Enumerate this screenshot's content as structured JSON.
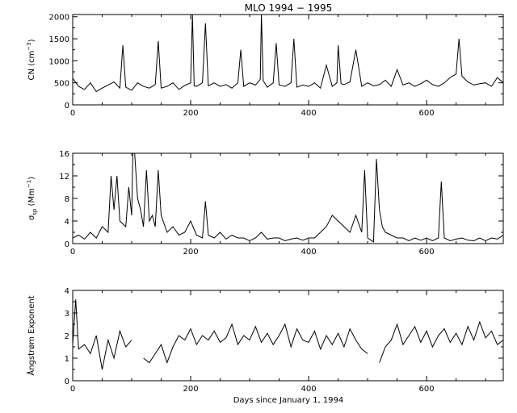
{
  "figure": {
    "title": "MLO 1994 − 1995",
    "xlabel": "Days since January 1, 1994"
  },
  "chart_data": [
    {
      "type": "line",
      "title": "MLO 1994 − 1995",
      "ylabel": {
        "main": "CN (cm",
        "sup": "−3",
        "close": ")"
      },
      "xlabel": "",
      "xlim": [
        0,
        730
      ],
      "ylim": [
        0,
        2050
      ],
      "xticks": [
        0,
        200,
        400,
        600
      ],
      "yticks": [
        0,
        500,
        1000,
        1500,
        2000
      ],
      "grid": false,
      "series": [
        {
          "x": [
            0,
            10,
            20,
            30,
            40,
            50,
            60,
            70,
            80,
            85,
            90,
            100,
            110,
            120,
            130,
            140,
            145,
            150,
            160,
            170,
            180,
            190,
            200,
            203,
            206,
            210,
            220,
            225,
            230,
            240,
            250,
            260,
            270,
            280,
            285,
            290,
            300,
            310,
            318,
            320,
            323,
            330,
            340,
            345,
            350,
            360,
            370,
            375,
            380,
            390,
            400,
            410,
            420,
            430,
            440,
            448,
            450,
            455,
            460,
            470,
            480,
            490,
            500,
            510,
            520,
            530,
            540,
            550,
            560,
            570,
            580,
            590,
            600,
            610,
            620,
            630,
            640,
            650,
            655,
            660,
            670,
            680,
            690,
            700,
            710,
            720,
            730
          ],
          "values": [
            600,
            420,
            350,
            500,
            300,
            380,
            450,
            520,
            380,
            1350,
            400,
            330,
            500,
            420,
            380,
            460,
            1450,
            380,
            420,
            500,
            350,
            440,
            500,
            2050,
            430,
            420,
            500,
            1850,
            430,
            500,
            420,
            460,
            380,
            500,
            1250,
            420,
            500,
            450,
            580,
            2050,
            550,
            400,
            500,
            1400,
            450,
            420,
            500,
            1500,
            400,
            450,
            420,
            500,
            380,
            900,
            420,
            500,
            1350,
            480,
            460,
            520,
            1250,
            420,
            500,
            430,
            460,
            560,
            420,
            800,
            450,
            500,
            420,
            480,
            560,
            460,
            420,
            500,
            620,
            700,
            1500,
            650,
            520,
            450,
            480,
            500,
            420,
            620,
            500
          ]
        }
      ]
    },
    {
      "type": "line",
      "ylabel": {
        "main": "σ",
        "sub": "sp",
        "open": " (Mm",
        "sup": "−1",
        "close": ")"
      },
      "xlabel": "",
      "xlim": [
        0,
        730
      ],
      "ylim": [
        0,
        16
      ],
      "xticks": [
        0,
        200,
        400,
        600
      ],
      "yticks": [
        0,
        4,
        8,
        12,
        16
      ],
      "grid": false,
      "series": [
        {
          "x": [
            0,
            10,
            20,
            30,
            40,
            50,
            60,
            65,
            70,
            75,
            80,
            90,
            95,
            100,
            102,
            105,
            110,
            115,
            120,
            125,
            130,
            135,
            140,
            145,
            150,
            160,
            170,
            180,
            190,
            200,
            210,
            220,
            225,
            230,
            240,
            250,
            260,
            270,
            280,
            290,
            300,
            310,
            320,
            330,
            340,
            350,
            360,
            370,
            380,
            390,
            400,
            410,
            420,
            430,
            440,
            450,
            460,
            470,
            480,
            490,
            495,
            500,
            510,
            515,
            520,
            525,
            530,
            540,
            550,
            560,
            570,
            580,
            590,
            600,
            610,
            620,
            625,
            630,
            640,
            650,
            660,
            670,
            680,
            690,
            700,
            710,
            720,
            730
          ],
          "values": [
            1,
            1.5,
            0.8,
            2,
            1,
            3,
            2,
            12,
            6,
            12,
            4,
            3,
            10,
            5,
            16,
            16,
            8,
            6,
            3,
            13,
            4,
            5,
            3,
            13,
            5,
            2,
            3,
            1.5,
            2,
            4,
            1.5,
            1,
            7.5,
            1.5,
            1,
            2,
            0.8,
            1.5,
            1,
            1,
            0.5,
            1,
            2,
            0.8,
            1,
            1,
            0.5,
            0.8,
            1,
            0.6,
            1,
            1,
            2,
            3,
            5,
            4,
            3,
            2,
            5,
            2,
            13,
            1,
            0.3,
            15,
            6,
            3,
            2,
            1.5,
            1,
            1,
            0.5,
            1,
            0.6,
            1,
            0.5,
            1,
            11,
            1,
            0.5,
            0.8,
            1,
            0.6,
            0.5,
            1,
            0.5,
            1,
            0.8,
            1.5
          ]
        }
      ]
    },
    {
      "type": "line",
      "ylabel": "Ångstrøm Exponent",
      "xlabel": "Days since January 1, 1994",
      "xlim": [
        0,
        730
      ],
      "ylim": [
        0,
        4
      ],
      "xticks": [
        0,
        200,
        400,
        600
      ],
      "yticks": [
        0,
        1,
        2,
        3,
        4
      ],
      "grid": false,
      "series": [
        {
          "x": [
            0,
            5,
            10,
            20,
            30,
            40,
            50,
            60,
            70,
            80,
            90,
            100,
            110,
            120,
            130,
            140,
            150,
            160,
            170,
            180,
            190,
            200,
            210,
            220,
            230,
            240,
            250,
            260,
            270,
            280,
            290,
            300,
            310,
            320,
            330,
            340,
            350,
            360,
            370,
            380,
            390,
            400,
            410,
            420,
            430,
            440,
            450,
            460,
            470,
            480,
            490,
            500,
            510,
            520,
            530,
            540,
            550,
            560,
            570,
            580,
            590,
            600,
            610,
            620,
            630,
            640,
            650,
            660,
            670,
            680,
            690,
            700,
            710,
            720,
            730
          ],
          "values": [
            1.6,
            3.6,
            1.4,
            1.6,
            1.2,
            2,
            0.5,
            1.8,
            1,
            2.2,
            1.5,
            1.8,
            null,
            1,
            0.8,
            1.2,
            1.6,
            0.8,
            1.5,
            2,
            1.8,
            2.3,
            1.6,
            2,
            1.8,
            2.2,
            1.7,
            1.9,
            2.5,
            1.6,
            2,
            1.8,
            2.4,
            1.7,
            2.1,
            1.6,
            2,
            2.5,
            1.5,
            2.3,
            1.8,
            1.7,
            2.2,
            1.4,
            2,
            1.6,
            2.1,
            1.5,
            2.3,
            1.8,
            1.4,
            1.2,
            null,
            0.8,
            1.5,
            1.8,
            2.5,
            1.6,
            2,
            2.4,
            1.7,
            2.2,
            1.5,
            2,
            2.3,
            1.7,
            2.1,
            1.6,
            2.4,
            1.8,
            2.6,
            1.9,
            2.2,
            1.6,
            1.8
          ]
        }
      ]
    }
  ]
}
